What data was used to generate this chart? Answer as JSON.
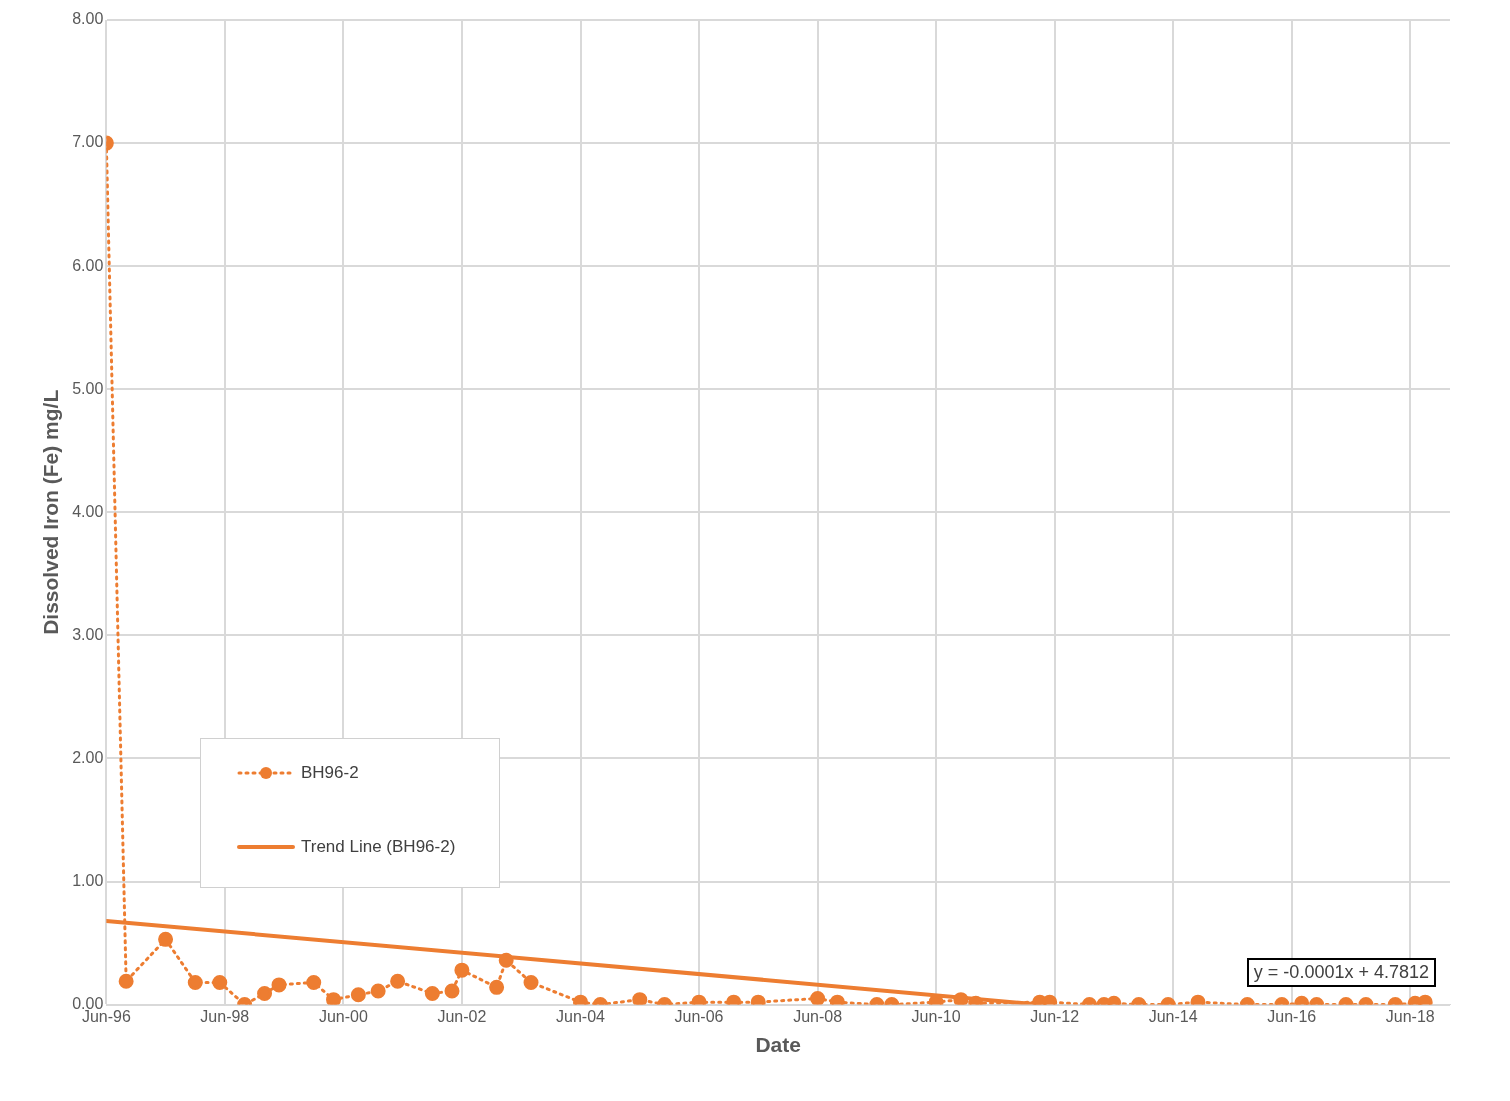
{
  "chart_data": {
    "type": "line",
    "xlabel": "Date",
    "ylabel": "Dissolved Iron (Fe) mg/L",
    "xlim": [
      "1996-06-01",
      "2019-02-01"
    ],
    "xticks": [
      {
        "value": "1996-06-01",
        "label": "Jun-96"
      },
      {
        "value": "1998-06-01",
        "label": "Jun-98"
      },
      {
        "value": "2000-06-01",
        "label": "Jun-00"
      },
      {
        "value": "2002-06-01",
        "label": "Jun-02"
      },
      {
        "value": "2004-06-01",
        "label": "Jun-04"
      },
      {
        "value": "2006-06-01",
        "label": "Jun-06"
      },
      {
        "value": "2008-06-01",
        "label": "Jun-08"
      },
      {
        "value": "2010-06-01",
        "label": "Jun-10"
      },
      {
        "value": "2012-06-01",
        "label": "Jun-12"
      },
      {
        "value": "2014-06-01",
        "label": "Jun-14"
      },
      {
        "value": "2016-06-01",
        "label": "Jun-16"
      },
      {
        "value": "2018-06-01",
        "label": "Jun-18"
      }
    ],
    "ylim": [
      0,
      8
    ],
    "yticks": [
      {
        "value": 0,
        "label": "0.00"
      },
      {
        "value": 1,
        "label": "1.00"
      },
      {
        "value": 2,
        "label": "2.00"
      },
      {
        "value": 3,
        "label": "3.00"
      },
      {
        "value": 4,
        "label": "4.00"
      },
      {
        "value": 5,
        "label": "5.00"
      },
      {
        "value": 6,
        "label": "6.00"
      },
      {
        "value": 7,
        "label": "7.00"
      },
      {
        "value": 8,
        "label": "8.00"
      }
    ],
    "grid": true,
    "legend": "bottom left",
    "series": [
      {
        "name": "BH96-2",
        "type": "line",
        "color": "#ed7d31",
        "marker": "circle",
        "line_style": "dotted",
        "x": [
          "1996-06",
          "1996-10",
          "1997-06",
          "1997-12",
          "1998-05",
          "1998-10",
          "1999-02",
          "1999-05",
          "1999-12",
          "2000-04",
          "2000-09",
          "2001-01",
          "2001-05",
          "2001-12",
          "2002-04",
          "2002-06",
          "2003-01",
          "2003-03",
          "2003-08",
          "2004-06",
          "2004-10",
          "2005-06",
          "2005-11",
          "2006-06",
          "2007-01",
          "2007-06",
          "2008-06",
          "2008-10",
          "2009-06",
          "2009-09",
          "2010-06",
          "2010-11",
          "2011-02",
          "2012-03",
          "2012-05",
          "2013-01",
          "2013-04",
          "2013-06",
          "2013-11",
          "2014-05",
          "2014-11",
          "2015-09",
          "2016-04",
          "2016-08",
          "2016-11",
          "2017-05",
          "2017-09",
          "2018-03",
          "2018-07",
          "2018-09"
        ],
        "values": [
          7.0,
          0.19,
          0.53,
          0.18,
          0.18,
          0.0,
          0.09,
          0.16,
          0.18,
          0.04,
          0.08,
          0.11,
          0.19,
          0.09,
          0.11,
          0.28,
          0.14,
          0.36,
          0.18,
          0.02,
          0.0,
          0.04,
          0.0,
          0.02,
          0.02,
          0.02,
          0.05,
          0.02,
          0.0,
          0.0,
          0.02,
          0.04,
          0.01,
          0.02,
          0.02,
          0.0,
          0.0,
          0.01,
          0.0,
          0.0,
          0.02,
          0.0,
          0.0,
          0.01,
          0.0,
          0.0,
          0.0,
          0.0,
          0.01,
          0.02
        ]
      },
      {
        "name": "Trend Line (BH96-2)",
        "type": "line",
        "color": "#ed7d31",
        "marker": "none",
        "line_style": "solid",
        "x": [
          "1996-06",
          "2012-03"
        ],
        "values": [
          0.68,
          0.0
        ]
      }
    ],
    "annotations": [
      "y = -0.0001x + 4.7812"
    ]
  }
}
